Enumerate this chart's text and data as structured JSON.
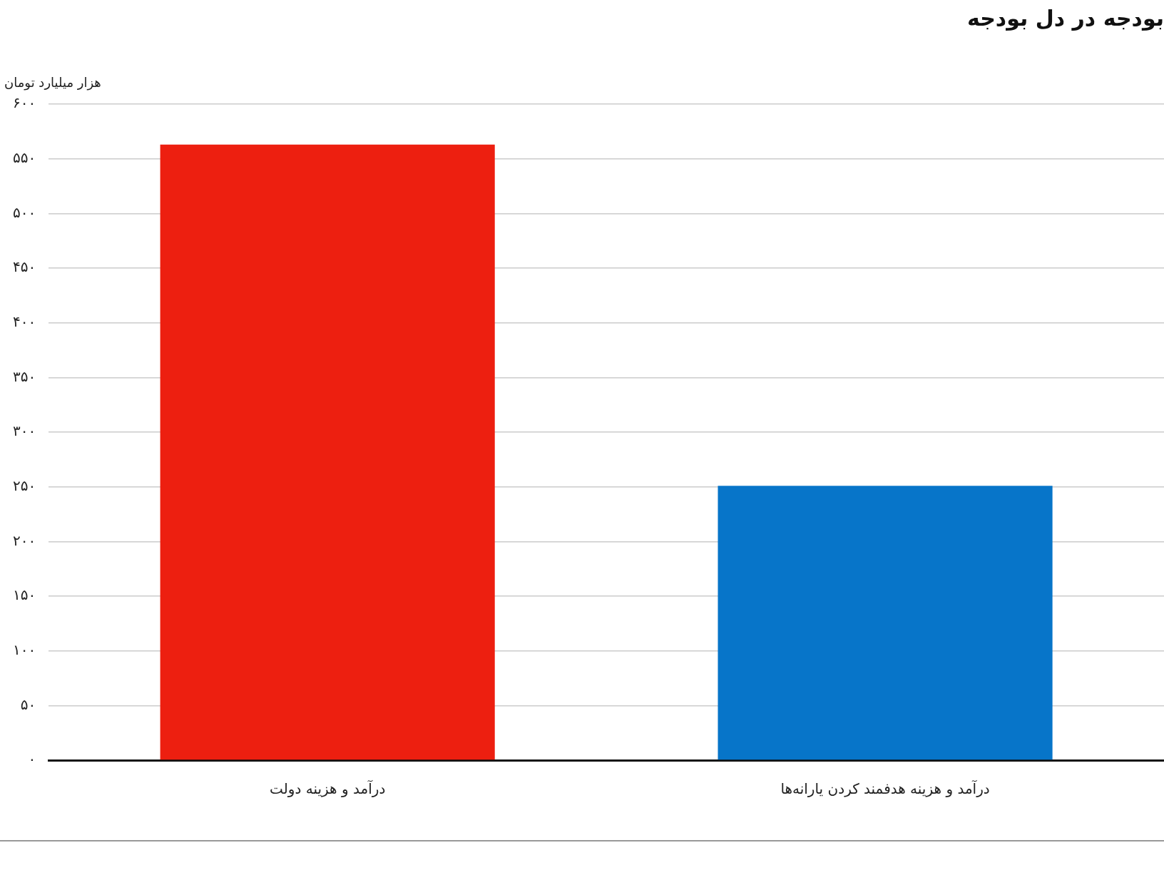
{
  "chart_data": {
    "type": "bar",
    "title": "بودجه در دل بودجه",
    "ylabel": "هزار میلیارد تومان",
    "categories": [
      "درآمد و هزینه دولت",
      "درآمد و هزینه هدفمند کردن یارانه‌ها"
    ],
    "values": [
      563,
      251
    ],
    "colors": [
      "#ed1f10",
      "#0775c9"
    ],
    "ylim": [
      0,
      600
    ],
    "yticks": [
      {
        "value": 0,
        "label": "۰"
      },
      {
        "value": 50,
        "label": "۵۰"
      },
      {
        "value": 100,
        "label": "۱۰۰"
      },
      {
        "value": 150,
        "label": "۱۵۰"
      },
      {
        "value": 200,
        "label": "۲۰۰"
      },
      {
        "value": 250,
        "label": "۲۵۰"
      },
      {
        "value": 300,
        "label": "۳۰۰"
      },
      {
        "value": 350,
        "label": "۳۵۰"
      },
      {
        "value": 400,
        "label": "۴۰۰"
      },
      {
        "value": 450,
        "label": "۴۵۰"
      },
      {
        "value": 500,
        "label": "۵۰۰"
      },
      {
        "value": 550,
        "label": "۵۵۰"
      },
      {
        "value": 600,
        "label": "۶۰۰"
      }
    ],
    "grid": "y"
  }
}
